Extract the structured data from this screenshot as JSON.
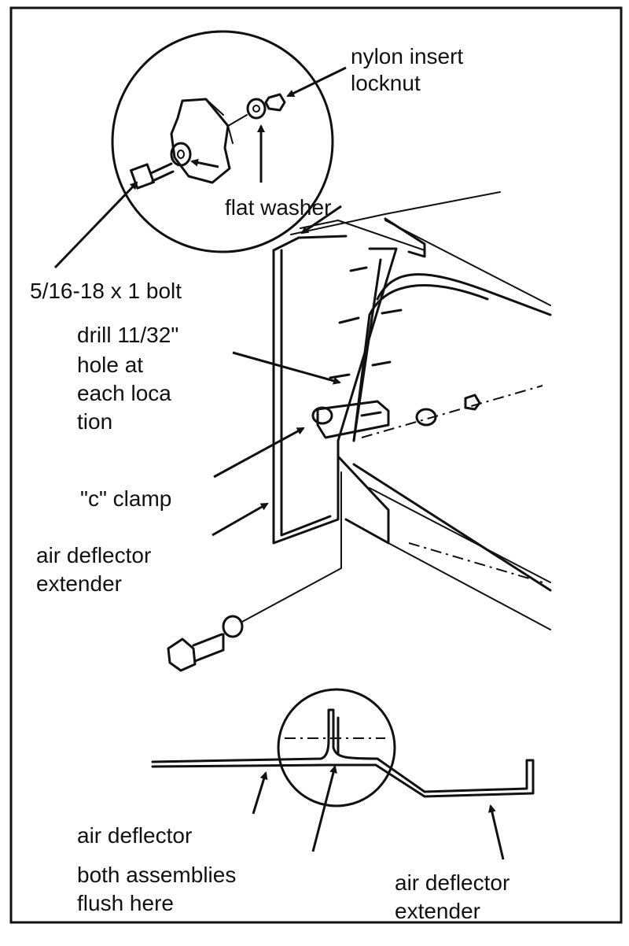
{
  "labels": {
    "nylon_insert": "nylon insert",
    "locknut": "locknut",
    "flat_washer": "flat washer",
    "bolt": "5/16-18 x 1 bolt",
    "drill_line1": "drill 11/32\"",
    "drill_line2": "hole at",
    "drill_line3": "each loca",
    "drill_line4": "tion",
    "c_clamp": "\"c\" clamp",
    "extender_line1": "air deflector",
    "extender_line2": "extender",
    "air_deflector": "air deflector",
    "flush_line1": "both assemblies",
    "flush_line2": "flush here",
    "extender2_line1": "air deflector",
    "extender2_line2": "extender"
  }
}
